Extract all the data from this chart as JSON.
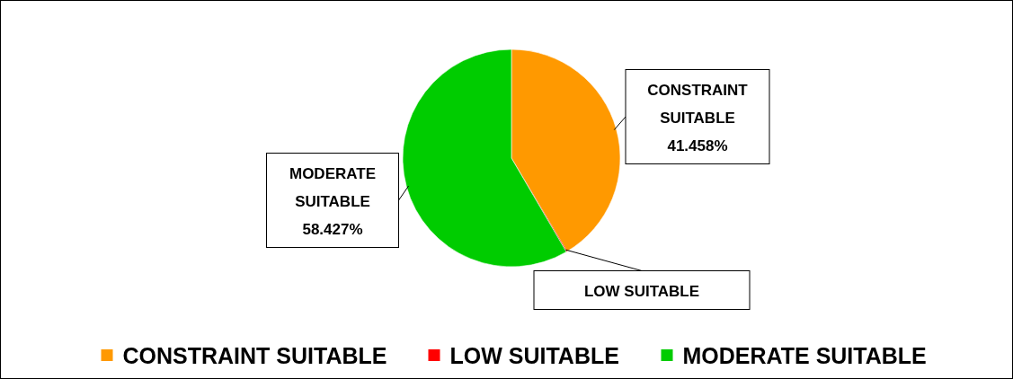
{
  "chart_data": {
    "type": "pie",
    "categories": [
      "CONSTRAINT SUITABLE",
      "LOW SUITABLE",
      "MODERATE SUITABLE"
    ],
    "values": [
      41.458,
      0.115,
      58.427
    ],
    "colors": [
      "#ff9900",
      "#ff0000",
      "#00cc00"
    ],
    "value_labels": [
      "41.458%",
      null,
      "58.427%"
    ],
    "legend": "bottom"
  }
}
